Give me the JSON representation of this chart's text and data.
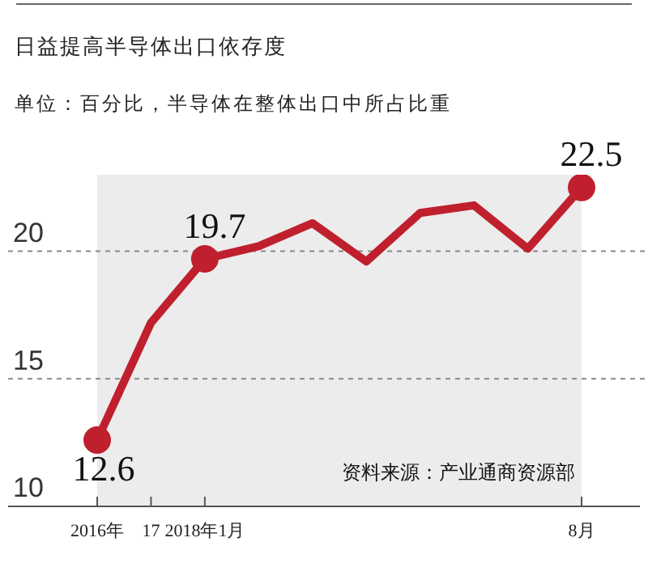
{
  "chart_data": {
    "type": "line",
    "title": "日益提高半导体出口依存度",
    "subtitle": "单位：百分比，半导体在整体出口中所占比重",
    "categories": [
      "2016年",
      "17",
      "2018年1月",
      null,
      null,
      null,
      null,
      null,
      null,
      "8月"
    ],
    "series": [
      {
        "color": "#c0202e",
        "values": [
          12.6,
          17.2,
          19.7,
          20.2,
          21.1,
          19.6,
          21.5,
          21.8,
          20.1,
          22.5
        ],
        "value_labels": [
          "12.6",
          null,
          "19.7",
          null,
          null,
          null,
          null,
          null,
          null,
          "22.5"
        ]
      }
    ],
    "ylim": [
      10,
      23
    ],
    "yticks": [
      10,
      15,
      20
    ],
    "grid": "y",
    "legend": false,
    "line_style": "solid",
    "bands": [
      {
        "axis": "x",
        "from": "2016年",
        "to": "8月",
        "color": "#ececec"
      }
    ],
    "annotations": [
      "资料来源：产业通商资源部"
    ]
  }
}
